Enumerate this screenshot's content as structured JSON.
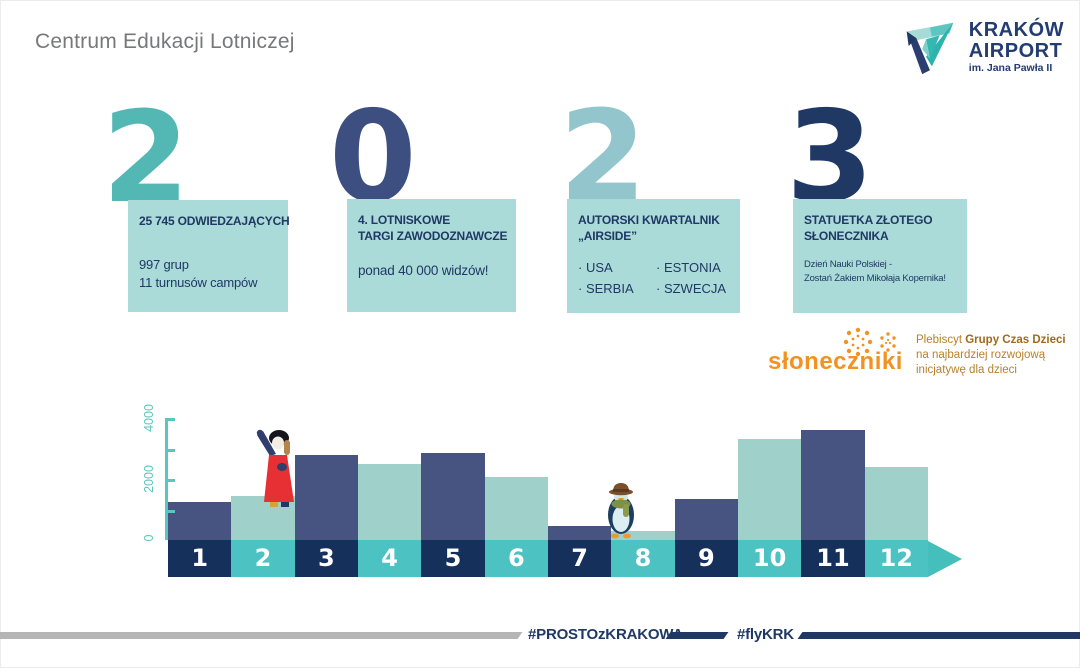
{
  "slide": {
    "title": "Centrum Edukacji Lotniczej"
  },
  "logo": {
    "name": "KRAKÓW",
    "name2": "AIRPORT",
    "subtitle": "im. Jana Pawła II"
  },
  "year_stats": [
    {
      "digit": "2",
      "digit_color": "#53b8b4",
      "heading": "25 745 ODWIEDZAJĄCYCH",
      "body": "997 grup\n11 turnusów campów"
    },
    {
      "digit": "0",
      "digit_color": "#3d4e81",
      "heading": "4. LOTNISKOWE\nTARGI ZAWODOZNAWCZE",
      "body": "ponad 40 000 widzów!"
    },
    {
      "digit": "2",
      "digit_color": "#93c5cc",
      "heading": "AUTORSKI KWARTALNIK\n„AIRSIDE”",
      "bullets": [
        "· USA",
        "· SERBIA",
        "· ESTONIA",
        "· SZWECJA"
      ]
    },
    {
      "digit": "3",
      "digit_color": "#1f3864",
      "heading": "STATUETKA ZŁOTEGO\nSŁONECZNIKA",
      "body": "Dzień Nauki Polskiej -\nZostań Żakiem Mikołaja Kopernika!"
    }
  ],
  "sloneczniki": {
    "logo_text": "słoneczniki",
    "line1_normal": "Plebiscyt ",
    "line1_bold": "Grupy Czas Dzieci",
    "line2": "na najbardziej rozwojową",
    "line3": "inicjatywę dla dzieci"
  },
  "chart_data": {
    "type": "bar",
    "title": "",
    "xlabel": "",
    "ylabel": "",
    "categories": [
      "1",
      "2",
      "3",
      "4",
      "5",
      "6",
      "7",
      "8",
      "9",
      "10",
      "11",
      "12"
    ],
    "values": [
      1250,
      1450,
      2800,
      2500,
      2850,
      2050,
      450,
      300,
      1350,
      3300,
      3600,
      2400
    ],
    "ylim": [
      0,
      4100
    ],
    "yticks_labeled": [
      0,
      2000,
      4000
    ],
    "yticks_minor": [
      1000,
      3000
    ],
    "grid": "off",
    "legend": "none",
    "bar_color_odd": "#475380",
    "bar_color_even": "#9fd1ca",
    "band_color_odd": "#16305c",
    "band_color_even": "#4cc2c2",
    "axis_color": "#5bc6c0",
    "decorations": [
      {
        "name": "waving-person-character",
        "month": 2
      },
      {
        "name": "penguin-character",
        "month": 7
      }
    ]
  },
  "footer": {
    "hashtag1": "#PROSTOzKRAKOWA",
    "hashtag2": "#flyKRK"
  },
  "colors": {
    "navy": "#1f3864",
    "box_bg": "#abdbd9",
    "title_gray": "#77787a",
    "footer_gray": "#b5b5b5",
    "orange": "#f29223",
    "arrow_teal": "#45bfbc"
  }
}
